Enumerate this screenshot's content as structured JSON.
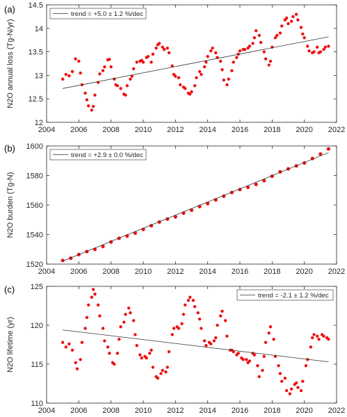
{
  "chart_data": [
    {
      "type": "scatter",
      "panel_label": "(a)",
      "ylabel": "N2O annual loss (Tg-N/yr)",
      "xlim": [
        2004,
        2022
      ],
      "ylim": [
        12,
        14.5
      ],
      "xticks": [
        2004,
        2006,
        2008,
        2010,
        2012,
        2014,
        2016,
        2018,
        2020,
        2022
      ],
      "yticks": [
        12,
        12.5,
        13,
        13.5,
        14,
        14.5
      ],
      "ytick_labels": [
        "12",
        "12.5",
        "13",
        "13.5",
        "14",
        "14.5"
      ],
      "grid": false,
      "legend_position": "top-left",
      "legend_text": "trend =  +5.0 ± 1.2 %/dec",
      "trend_line": {
        "x": [
          2005.0,
          2021.5
        ],
        "y": [
          12.72,
          13.82
        ]
      },
      "series": [
        {
          "x": [
            2005.0,
            2005.2,
            2005.4,
            2005.6,
            2005.8,
            2006.0,
            2006.1,
            2006.2,
            2006.4,
            2006.5,
            2006.6,
            2006.8,
            2006.9,
            2007.0,
            2007.2,
            2007.3,
            2007.5,
            2007.6,
            2007.8,
            2007.9,
            2008.0,
            2008.2,
            2008.3,
            2008.4,
            2008.6,
            2008.8,
            2008.9,
            2009.0,
            2009.2,
            2009.3,
            2009.4,
            2009.6,
            2009.8,
            2009.9,
            2010.0,
            2010.2,
            2010.3,
            2010.5,
            2010.6,
            2010.8,
            2010.9,
            2011.0,
            2011.2,
            2011.3,
            2011.5,
            2011.6,
            2011.8,
            2011.9,
            2012.0,
            2012.2,
            2012.3,
            2012.5,
            2012.6,
            2012.8,
            2012.9,
            2013.0,
            2013.2,
            2013.3,
            2013.5,
            2013.6,
            2013.8,
            2013.9,
            2014.0,
            2014.2,
            2014.3,
            2014.5,
            2014.6,
            2014.8,
            2014.9,
            2015.0,
            2015.2,
            2015.3,
            2015.5,
            2015.6,
            2015.8,
            2015.9,
            2016.0,
            2016.2,
            2016.3,
            2016.5,
            2016.6,
            2016.8,
            2016.9,
            2017.0,
            2017.2,
            2017.3,
            2017.5,
            2017.6,
            2017.8,
            2017.9,
            2018.0,
            2018.2,
            2018.3,
            2018.5,
            2018.6,
            2018.8,
            2018.9,
            2019.0,
            2019.2,
            2019.3,
            2019.5,
            2019.6,
            2019.8,
            2019.9,
            2020.0,
            2020.2,
            2020.3,
            2020.5,
            2020.6,
            2020.8,
            2020.9,
            2021.0,
            2021.2,
            2021.3,
            2021.5
          ],
          "y": [
            12.92,
            13.02,
            12.99,
            13.08,
            13.35,
            13.3,
            13.05,
            12.8,
            12.62,
            12.48,
            12.35,
            12.26,
            12.34,
            12.58,
            12.85,
            13.03,
            13.1,
            13.18,
            13.33,
            13.34,
            13.18,
            12.92,
            12.8,
            12.78,
            12.72,
            12.6,
            12.58,
            12.78,
            12.92,
            12.98,
            13.14,
            13.28,
            13.3,
            13.32,
            13.28,
            13.38,
            13.4,
            13.28,
            13.45,
            13.58,
            13.65,
            13.68,
            13.6,
            13.55,
            13.58,
            13.48,
            13.2,
            13.02,
            12.98,
            12.95,
            12.8,
            12.75,
            12.72,
            12.62,
            12.6,
            12.65,
            12.78,
            12.95,
            13.08,
            13.02,
            13.18,
            13.28,
            13.4,
            13.52,
            13.58,
            13.48,
            13.38,
            13.3,
            13.12,
            12.9,
            12.8,
            12.92,
            13.1,
            13.28,
            13.38,
            13.45,
            13.52,
            13.55,
            13.55,
            13.58,
            13.62,
            13.68,
            13.8,
            13.95,
            13.85,
            13.7,
            13.5,
            13.35,
            13.22,
            13.3,
            13.6,
            13.8,
            13.85,
            13.9,
            14.05,
            14.18,
            14.22,
            14.1,
            14.15,
            14.25,
            14.3,
            14.18,
            14.02,
            13.88,
            13.8,
            13.62,
            13.52,
            13.48,
            13.5,
            13.6,
            13.48,
            13.5,
            13.55,
            13.6,
            13.62
          ]
        }
      ]
    },
    {
      "type": "scatter",
      "panel_label": "(b)",
      "ylabel": "N2O burden (Tg-N)",
      "xlim": [
        2004,
        2022
      ],
      "ylim": [
        1520,
        1600
      ],
      "xticks": [
        2004,
        2006,
        2008,
        2010,
        2012,
        2014,
        2016,
        2018,
        2020,
        2022
      ],
      "yticks": [
        1520,
        1540,
        1560,
        1580,
        1600
      ],
      "ytick_labels": [
        "1520",
        "1540",
        "1560",
        "1580",
        "1600"
      ],
      "grid": false,
      "legend_position": "top-left",
      "legend_text": "trend =  +2.9 ± 0.0 %/dec",
      "trend_line": {
        "x": [
          2005.0,
          2021.5
        ],
        "y": [
          1522.0,
          1595.5
        ]
      },
      "series": [
        {
          "x": [
            2005.0,
            2005.5,
            2006.0,
            2006.5,
            2007.0,
            2007.5,
            2008.0,
            2008.5,
            2009.0,
            2009.5,
            2010.0,
            2010.5,
            2011.0,
            2011.5,
            2012.0,
            2012.5,
            2013.0,
            2013.5,
            2014.0,
            2014.5,
            2015.0,
            2015.5,
            2016.0,
            2016.5,
            2017.0,
            2017.5,
            2018.0,
            2018.5,
            2019.0,
            2019.5,
            2020.0,
            2020.5,
            2021.0,
            2021.5
          ],
          "y": [
            1522.5,
            1524.0,
            1526.5,
            1528.5,
            1530.0,
            1532.0,
            1535.0,
            1537.5,
            1539.0,
            1541.0,
            1543.5,
            1546.0,
            1548.5,
            1550.5,
            1552.0,
            1554.5,
            1556.5,
            1559.0,
            1561.0,
            1563.5,
            1566.0,
            1568.5,
            1570.5,
            1572.0,
            1574.0,
            1576.5,
            1579.5,
            1582.5,
            1584.5,
            1586.5,
            1588.5,
            1591.5,
            1594.5,
            1598.0
          ]
        }
      ]
    },
    {
      "type": "scatter",
      "panel_label": "(c)",
      "ylabel": "N2O lifetime (yr)",
      "xlim": [
        2004,
        2022
      ],
      "ylim": [
        110,
        125
      ],
      "xticks": [
        2004,
        2006,
        2008,
        2010,
        2012,
        2014,
        2016,
        2018,
        2020,
        2022
      ],
      "yticks": [
        110,
        115,
        120,
        125
      ],
      "ytick_labels": [
        "110",
        "115",
        "120",
        "125"
      ],
      "grid": false,
      "legend_position": "top-right",
      "legend_text": "trend =  -2.1 ± 1.2 %/dec",
      "trend_line": {
        "x": [
          2005.0,
          2021.5
        ],
        "y": [
          119.4,
          115.3
        ]
      },
      "series": [
        {
          "x": [
            2005.0,
            2005.2,
            2005.4,
            2005.6,
            2005.8,
            2005.9,
            2006.1,
            2006.2,
            2006.4,
            2006.5,
            2006.6,
            2006.8,
            2006.9,
            2007.0,
            2007.2,
            2007.3,
            2007.5,
            2007.6,
            2007.8,
            2007.9,
            2008.1,
            2008.2,
            2008.4,
            2008.5,
            2008.6,
            2008.8,
            2008.9,
            2009.1,
            2009.2,
            2009.4,
            2009.5,
            2009.6,
            2009.8,
            2009.9,
            2010.1,
            2010.2,
            2010.4,
            2010.5,
            2010.6,
            2010.8,
            2010.9,
            2011.1,
            2011.2,
            2011.4,
            2011.5,
            2011.6,
            2011.8,
            2011.9,
            2012.1,
            2012.2,
            2012.4,
            2012.5,
            2012.6,
            2012.8,
            2012.9,
            2013.1,
            2013.2,
            2013.4,
            2013.5,
            2013.6,
            2013.8,
            2013.9,
            2014.1,
            2014.2,
            2014.4,
            2014.5,
            2014.6,
            2014.8,
            2014.9,
            2015.1,
            2015.2,
            2015.4,
            2015.5,
            2015.6,
            2015.8,
            2015.9,
            2016.1,
            2016.2,
            2016.4,
            2016.5,
            2016.6,
            2016.8,
            2016.9,
            2017.1,
            2017.2,
            2017.4,
            2017.5,
            2017.6,
            2017.8,
            2017.9,
            2018.1,
            2018.2,
            2018.4,
            2018.5,
            2018.6,
            2018.8,
            2018.9,
            2019.1,
            2019.2,
            2019.4,
            2019.5,
            2019.6,
            2019.8,
            2019.9,
            2020.1,
            2020.2,
            2020.4,
            2020.5,
            2020.6,
            2020.8,
            2020.9,
            2021.1,
            2021.2,
            2021.4,
            2021.5
          ],
          "y": [
            117.8,
            117.2,
            117.6,
            116.8,
            115.2,
            114.4,
            115.6,
            117.8,
            119.6,
            121.0,
            122.6,
            123.6,
            124.6,
            124.0,
            122.6,
            121.2,
            119.6,
            118.0,
            117.2,
            116.4,
            115.2,
            115.0,
            116.4,
            118.2,
            119.8,
            120.4,
            121.4,
            122.2,
            121.6,
            120.6,
            118.8,
            117.4,
            116.2,
            115.8,
            116.0,
            115.8,
            116.4,
            116.8,
            114.6,
            113.4,
            113.2,
            113.8,
            114.2,
            114.0,
            114.6,
            116.6,
            118.8,
            119.6,
            119.8,
            119.6,
            120.2,
            121.4,
            122.6,
            123.2,
            123.6,
            123.2,
            122.4,
            121.6,
            120.8,
            119.6,
            118.0,
            117.4,
            117.8,
            117.6,
            118.0,
            118.4,
            120.0,
            121.2,
            121.8,
            120.6,
            118.6,
            116.8,
            116.8,
            116.6,
            116.2,
            116.4,
            115.8,
            115.6,
            115.6,
            115.2,
            115.4,
            116.4,
            116.2,
            114.8,
            113.4,
            114.2,
            116.0,
            117.8,
            119.0,
            119.8,
            118.2,
            116.0,
            114.8,
            113.8,
            112.8,
            113.2,
            111.6,
            111.2,
            111.8,
            112.4,
            112.6,
            112.0,
            111.6,
            112.8,
            114.8,
            115.6,
            117.2,
            118.4,
            118.8,
            118.6,
            118.2,
            118.8,
            118.6,
            118.4,
            118.2
          ]
        }
      ]
    }
  ]
}
